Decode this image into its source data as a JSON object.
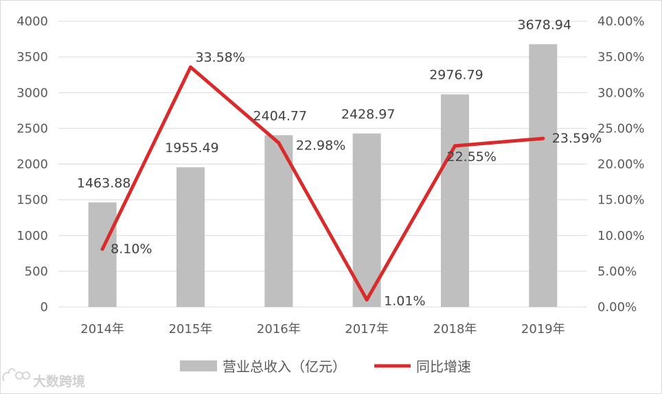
{
  "chart_data": {
    "type": "bar",
    "categories": [
      "2014年",
      "2015年",
      "2016年",
      "2017年",
      "2018年",
      "2019年"
    ],
    "series": [
      {
        "name": "营业总收入（亿元）",
        "type": "bar",
        "axis": "left",
        "values": [
          1463.88,
          1955.49,
          2404.77,
          2428.97,
          2976.79,
          3678.94
        ],
        "labels": [
          "1463.88",
          "1955.49",
          "2404.77",
          "2428.97",
          "2976.79",
          "3678.94"
        ],
        "color": "#bfbfbf"
      },
      {
        "name": "同比增速",
        "type": "line",
        "axis": "right",
        "values": [
          8.1,
          33.58,
          22.98,
          1.01,
          22.55,
          23.59
        ],
        "labels": [
          "8.10%",
          "33.58%",
          "22.98%",
          "1.01%",
          "22.55%",
          "23.59%"
        ],
        "color": "#d92b2b"
      }
    ],
    "y_left": {
      "ylim": [
        0,
        4000
      ],
      "ticks": [
        0,
        500,
        1000,
        1500,
        2000,
        2500,
        3000,
        3500,
        4000
      ],
      "tick_labels": [
        "0",
        "500",
        "1000",
        "1500",
        "2000",
        "2500",
        "3000",
        "3500",
        "4000"
      ]
    },
    "y_right": {
      "ylim": [
        0,
        40
      ],
      "ticks": [
        0,
        5,
        10,
        15,
        20,
        25,
        30,
        35,
        40
      ],
      "tick_labels": [
        "0.00%",
        "5.00%",
        "10.00%",
        "15.00%",
        "20.00%",
        "25.00%",
        "30.00%",
        "35.00%",
        "40.00%"
      ]
    },
    "grid": true,
    "legend_position": "bottom",
    "gridline_color": "#d9d9d9"
  },
  "watermark": {
    "text": "大数跨境"
  }
}
